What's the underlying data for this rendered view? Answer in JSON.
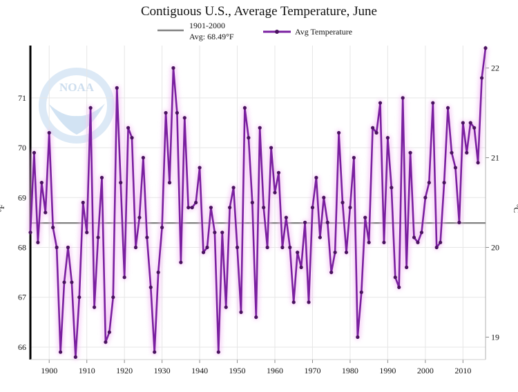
{
  "chart_data": {
    "type": "line",
    "title": "Contiguous U.S., Average Temperature, June",
    "xlabel": "",
    "ylabel": "°F",
    "ylabel_right": "°C",
    "xlim": [
      1895,
      2016
    ],
    "ylim": [
      65.75,
      72.05
    ],
    "ylim_right_c": [
      18.75,
      22.25
    ],
    "grid": true,
    "x_ticks": [
      "1900",
      "1910",
      "1920",
      "1930",
      "1940",
      "1950",
      "1960",
      "1970",
      "1980",
      "1990",
      "2000",
      "2010"
    ],
    "y_ticks": [
      "66",
      "67",
      "68",
      "69",
      "70",
      "71"
    ],
    "y_ticks_right": [
      "19",
      "20",
      "21",
      "22"
    ],
    "logo_text": "NOAA",
    "legend": [
      {
        "name": "1901-2000",
        "sub": "Avg: 68.49°F",
        "color": "#808080"
      },
      {
        "name": "Avg Temperature",
        "color": "#7a1fa0"
      }
    ],
    "baseline": {
      "label": "1901-2000",
      "avg_label": "Avg: 68.49°F",
      "value": 68.49
    },
    "x": [
      1895,
      1896,
      1897,
      1898,
      1899,
      1900,
      1901,
      1902,
      1903,
      1904,
      1905,
      1906,
      1907,
      1908,
      1909,
      1910,
      1911,
      1912,
      1913,
      1914,
      1915,
      1916,
      1917,
      1918,
      1919,
      1920,
      1921,
      1922,
      1923,
      1924,
      1925,
      1926,
      1927,
      1928,
      1929,
      1930,
      1931,
      1932,
      1933,
      1934,
      1935,
      1936,
      1937,
      1938,
      1939,
      1940,
      1941,
      1942,
      1943,
      1944,
      1945,
      1946,
      1947,
      1948,
      1949,
      1950,
      1951,
      1952,
      1953,
      1954,
      1955,
      1956,
      1957,
      1958,
      1959,
      1960,
      1961,
      1962,
      1963,
      1964,
      1965,
      1966,
      1967,
      1968,
      1969,
      1970,
      1971,
      1972,
      1973,
      1974,
      1975,
      1976,
      1977,
      1978,
      1979,
      1980,
      1981,
      1982,
      1983,
      1984,
      1985,
      1986,
      1987,
      1988,
      1989,
      1990,
      1991,
      1992,
      1993,
      1994,
      1995,
      1996,
      1997,
      1998,
      1999,
      2000,
      2001,
      2002,
      2003,
      2004,
      2005,
      2006,
      2007,
      2008,
      2009,
      2010,
      2011,
      2012,
      2013,
      2014,
      2015,
      2016
    ],
    "series": [
      {
        "name": "Avg Temperature",
        "color": "#7a1fa0",
        "values": [
          68.3,
          69.9,
          68.1,
          69.3,
          68.7,
          70.3,
          68.4,
          68.0,
          65.9,
          67.3,
          68.0,
          67.3,
          65.8,
          67.0,
          68.9,
          68.3,
          70.8,
          66.8,
          68.2,
          69.4,
          66.1,
          66.3,
          67.0,
          71.2,
          69.3,
          67.4,
          70.4,
          70.2,
          68.0,
          68.6,
          69.8,
          68.2,
          67.2,
          65.9,
          67.5,
          68.4,
          70.7,
          69.3,
          71.6,
          70.7,
          67.7,
          70.6,
          68.8,
          68.8,
          68.9,
          69.6,
          67.9,
          68.0,
          68.8,
          68.3,
          65.9,
          68.3,
          66.8,
          68.8,
          69.2,
          68.0,
          66.7,
          70.8,
          70.2,
          68.9,
          66.6,
          70.4,
          68.8,
          68.0,
          70.0,
          69.1,
          69.5,
          68.0,
          68.6,
          68.0,
          66.9,
          67.9,
          67.6,
          68.5,
          66.9,
          68.8,
          69.4,
          68.2,
          69.0,
          68.5,
          67.5,
          67.9,
          70.3,
          68.9,
          67.9,
          68.8,
          69.8,
          66.2,
          67.1,
          68.6,
          68.1,
          70.4,
          70.3,
          70.9,
          68.1,
          70.2,
          69.2,
          67.4,
          67.2,
          71.0,
          67.6,
          69.9,
          68.2,
          68.1,
          68.3,
          69.0,
          69.3,
          70.9,
          68.0,
          68.1,
          69.3,
          70.8,
          69.9,
          69.6,
          68.5,
          70.5,
          69.9,
          70.5,
          70.4,
          69.7,
          71.4,
          72.0
        ]
      }
    ]
  }
}
